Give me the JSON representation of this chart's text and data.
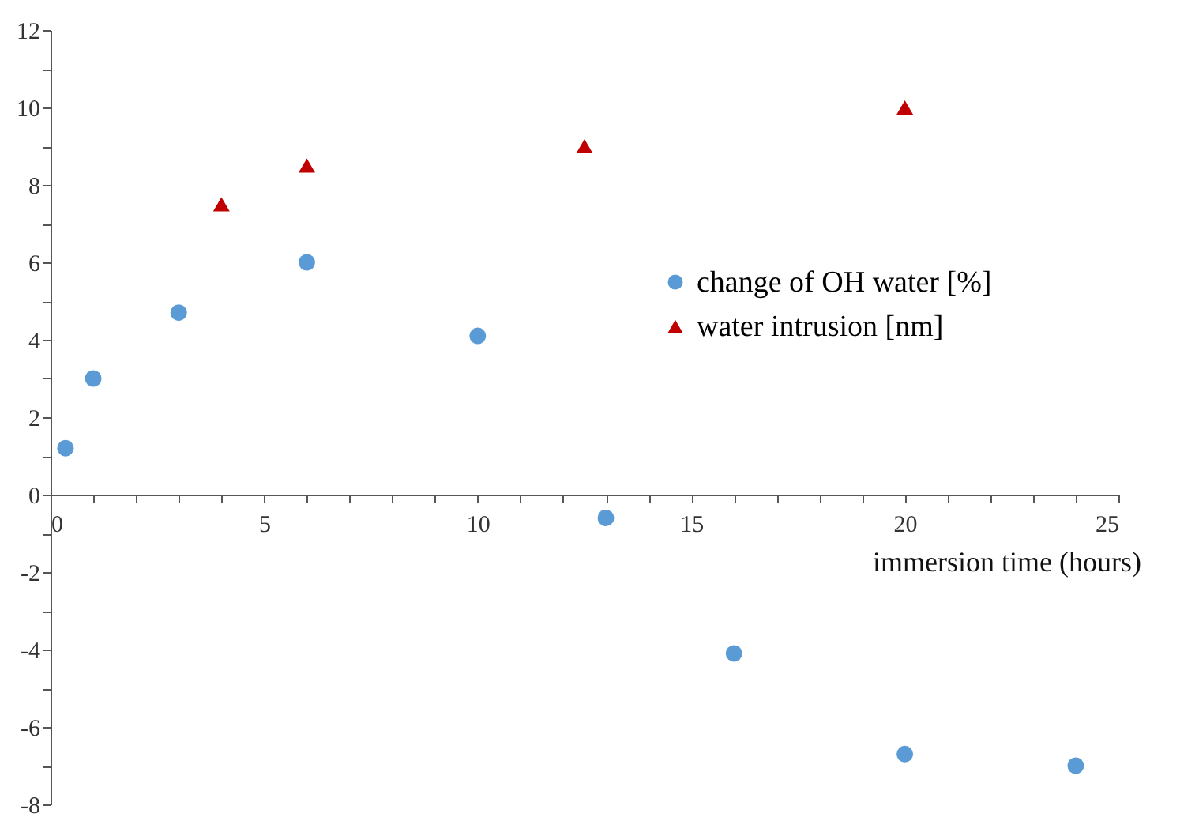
{
  "chart_data": {
    "type": "scatter",
    "xlabel": "immersion time (hours)",
    "xlim": [
      0,
      25
    ],
    "ylim": [
      -8,
      12
    ],
    "xticks": [
      0,
      {
        "value": 1,
        "label": null
      },
      {
        "value": 2,
        "label": null
      },
      {
        "value": 3,
        "label": null
      },
      {
        "value": 4,
        "label": null
      },
      5,
      {
        "value": 6,
        "label": null
      },
      {
        "value": 7,
        "label": null
      },
      {
        "value": 8,
        "label": null
      },
      {
        "value": 9,
        "label": null
      },
      10,
      {
        "value": 11,
        "label": null
      },
      {
        "value": 12,
        "label": null
      },
      {
        "value": 13,
        "label": null
      },
      {
        "value": 14,
        "label": null
      },
      15,
      {
        "value": 16,
        "label": null
      },
      {
        "value": 17,
        "label": null
      },
      {
        "value": 18,
        "label": null
      },
      {
        "value": 19,
        "label": null
      },
      20,
      {
        "value": 21,
        "label": null
      },
      {
        "value": 22,
        "label": null
      },
      {
        "value": 23,
        "label": null
      },
      {
        "value": 24,
        "label": null
      },
      25
    ],
    "yticks": [
      -8,
      {
        "value": -7,
        "label": null
      },
      -6,
      {
        "value": -5,
        "label": null
      },
      -4,
      {
        "value": -3,
        "label": null
      },
      -2,
      {
        "value": -1,
        "label": null
      },
      0,
      {
        "value": 1,
        "label": null
      },
      2,
      {
        "value": 3,
        "label": null
      },
      4,
      {
        "value": 5,
        "label": null
      },
      6,
      {
        "value": 7,
        "label": null
      },
      8,
      {
        "value": 9,
        "label": null
      },
      10,
      {
        "value": 11,
        "label": null
      },
      12
    ],
    "grid": false,
    "legend": "right",
    "series": [
      {
        "name": "change of OH water [%]",
        "color": "#5b9bd5",
        "marker": "circle",
        "x": [
          0.35,
          1,
          3,
          6,
          10,
          13,
          16,
          20,
          24
        ],
        "values": [
          1.2,
          3.0,
          4.7,
          6.0,
          4.1,
          -0.6,
          -4.1,
          -6.7,
          -7.0
        ]
      },
      {
        "name": "water intrusion [nm]",
        "color": "#c00000",
        "marker": "triangle",
        "x": [
          4,
          6,
          12.5,
          20
        ],
        "values": [
          7.5,
          8.5,
          9,
          10
        ]
      }
    ]
  }
}
